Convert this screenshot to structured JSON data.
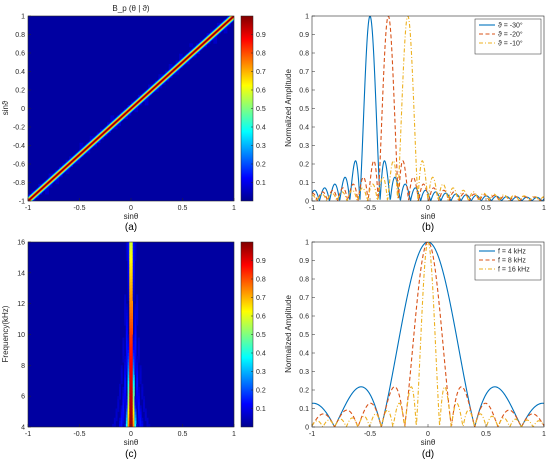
{
  "colors": {
    "jet": [
      "#00008f",
      "#0000ff",
      "#0080ff",
      "#00ffff",
      "#80ff80",
      "#ffff00",
      "#ff8000",
      "#ff0000",
      "#800000"
    ],
    "axis": "#262626"
  },
  "chart_data": [
    {
      "panel": "a",
      "type": "heatmap",
      "title": "B_p (θ | ϑ)",
      "xlabel": "sinθ",
      "ylabel": "sinϑ",
      "caption": "(a)",
      "xlim": [
        -1,
        1
      ],
      "ylim": [
        -1,
        1
      ],
      "xticks": [
        "-1",
        "-0.5",
        "0",
        "0.5",
        "1"
      ],
      "yticks": [
        "-1",
        "-0.8",
        "-0.6",
        "-0.4",
        "-0.2",
        "0",
        "0.2",
        "0.4",
        "0.6",
        "0.8",
        "1"
      ],
      "colorbar_ticks": [
        "0.1",
        "0.2",
        "0.3",
        "0.4",
        "0.5",
        "0.6",
        "0.7",
        "0.8",
        "0.9"
      ],
      "colorbar_range": [
        0,
        1
      ],
      "description_values": {
        "ridge": "sinθ = sinϑ",
        "peak": 1,
        "background": 0.02
      }
    },
    {
      "panel": "b",
      "type": "line",
      "xlabel": "sinθ",
      "ylabel": "Normalized Amplitude",
      "caption": "(b)",
      "xlim": [
        -1,
        1
      ],
      "ylim": [
        0,
        1
      ],
      "xticks": [
        "-1",
        "-0.5",
        "0",
        "0.5",
        "1"
      ],
      "yticks": [
        "0",
        "0.1",
        "0.2",
        "0.3",
        "0.4",
        "0.5",
        "0.6",
        "0.7",
        "0.8",
        "0.9",
        "1"
      ],
      "legend_position": "top-right",
      "series": [
        {
          "name": "ϑ = -30°",
          "center": -0.5,
          "color": "#0072bd",
          "dash": "solid"
        },
        {
          "name": "ϑ = -20°",
          "center": -0.342,
          "color": "#d95319",
          "dash": "dashed"
        },
        {
          "name": "ϑ = -10°",
          "center": -0.174,
          "color": "#edb120",
          "dash": "dashdot"
        }
      ]
    },
    {
      "panel": "c",
      "type": "heatmap",
      "xlabel": "sinθ",
      "ylabel": "Frequency(kHz)",
      "caption": "(c)",
      "xlim": [
        -1,
        1
      ],
      "ylim": [
        4,
        16
      ],
      "xticks": [
        "-1",
        "-0.5",
        "0",
        "0.5",
        "1"
      ],
      "yticks": [
        "4",
        "6",
        "8",
        "10",
        "12",
        "14",
        "16"
      ],
      "colorbar_ticks": [
        "0.1",
        "0.2",
        "0.3",
        "0.4",
        "0.5",
        "0.6",
        "0.7",
        "0.8",
        "0.9"
      ],
      "colorbar_range": [
        0,
        1
      ],
      "description_values": {
        "ridge": "sinθ = 0",
        "mainlobe_halfwidth_at_4kHz": 0.06,
        "mainlobe_halfwidth_at_16kHz": 0.02
      }
    },
    {
      "panel": "d",
      "type": "line",
      "xlabel": "sinθ",
      "ylabel": "Normalized Amplitude",
      "caption": "(d)",
      "xlim": [
        -1,
        1
      ],
      "ylim": [
        0,
        1
      ],
      "xticks": [
        "-1",
        "-0.5",
        "0",
        "0.5",
        "1"
      ],
      "yticks": [
        "0",
        "0.1",
        "0.2",
        "0.3",
        "0.4",
        "0.5",
        "0.6",
        "0.7",
        "0.8",
        "0.9",
        "1"
      ],
      "legend_position": "top-right",
      "series": [
        {
          "name": "f =  4 kHz",
          "frequency_khz": 4,
          "color": "#0072bd",
          "dash": "solid"
        },
        {
          "name": "f =  8 kHz",
          "frequency_khz": 8,
          "color": "#d95319",
          "dash": "dashed"
        },
        {
          "name": "f = 16 kHz",
          "frequency_khz": 16,
          "color": "#edb120",
          "dash": "dashdot"
        }
      ]
    }
  ]
}
